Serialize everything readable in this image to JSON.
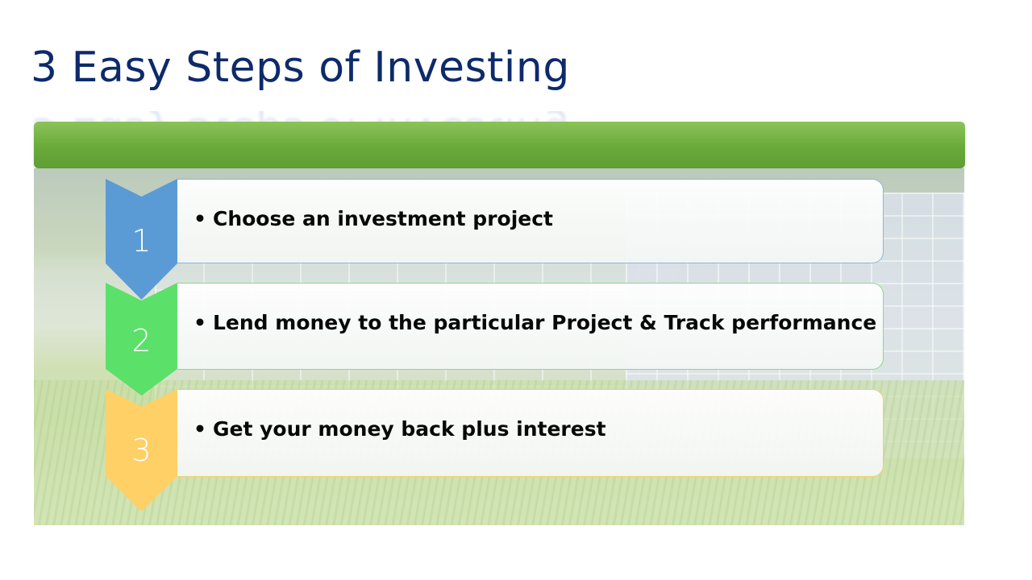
{
  "slide": {
    "title": "3 Easy Steps of Investing",
    "colors": {
      "title": "#0d2a6b",
      "header_bar": "#6aaa3a",
      "step1": "#5b9bd5",
      "step2": "#5be06a",
      "step3": "#ffd066"
    }
  },
  "steps": [
    {
      "number": "1",
      "text": "Choose an investment project",
      "bullet": "•"
    },
    {
      "number": "2",
      "text": "Lend money to the particular Project & Track performance",
      "bullet": "•"
    },
    {
      "number": "3",
      "text": "Get your money back plus interest",
      "bullet": "•"
    }
  ]
}
